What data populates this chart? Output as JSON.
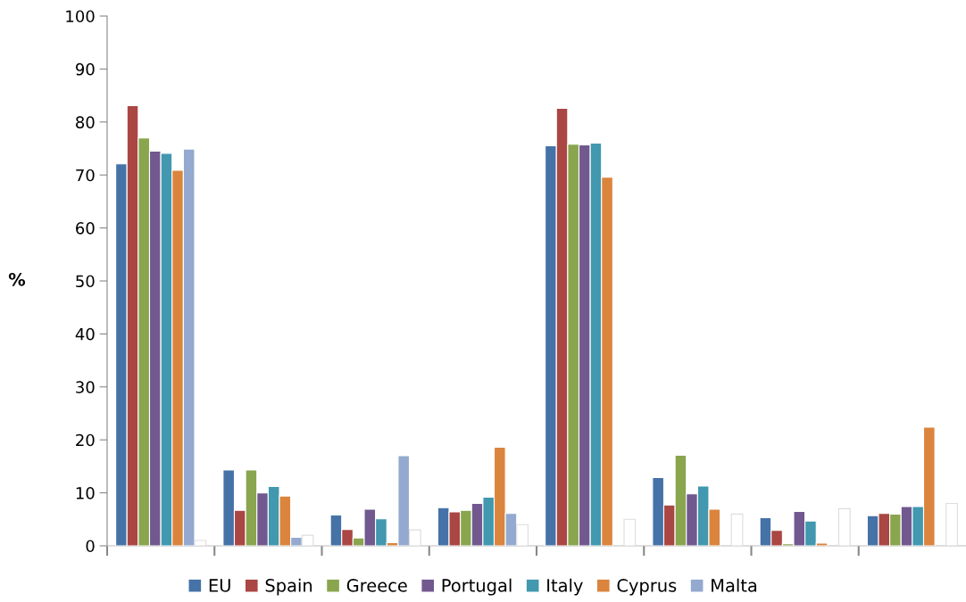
{
  "chart_data": {
    "type": "bar",
    "ylabel": "%",
    "categories": [
      null,
      null,
      null,
      null,
      null,
      null,
      null,
      null
    ],
    "series": [
      {
        "name": "EU",
        "color": "#4572a7",
        "values": [
          72.1,
          14.3,
          5.8,
          7.2,
          75.5,
          12.9,
          5.3,
          5.7
        ]
      },
      {
        "name": "Spain",
        "color": "#aa4643",
        "values": [
          83.1,
          6.7,
          3.1,
          6.4,
          82.6,
          7.7,
          2.9,
          6.1
        ]
      },
      {
        "name": "Greece",
        "color": "#89a54e",
        "values": [
          77.0,
          14.3,
          1.5,
          6.7,
          75.8,
          17.1,
          0.4,
          6.0
        ]
      },
      {
        "name": "Portugal",
        "color": "#71588f",
        "values": [
          74.5,
          10.0,
          6.9,
          8.0,
          75.7,
          9.8,
          6.5,
          7.4
        ]
      },
      {
        "name": "Italy",
        "color": "#4198af",
        "values": [
          74.1,
          11.2,
          5.1,
          9.2,
          76.0,
          11.3,
          4.7,
          7.4
        ]
      },
      {
        "name": "Cyprus",
        "color": "#db843d",
        "values": [
          70.9,
          9.4,
          0.6,
          18.6,
          69.6,
          6.9,
          0.5,
          22.4
        ]
      },
      {
        "name": "Malta",
        "color": "#93a9cf",
        "values": [
          74.9,
          1.6,
          17.0,
          6.1,
          null,
          null,
          null,
          null
        ]
      },
      {
        "color": "#ffffff",
        "values": [
          1,
          2,
          3,
          4,
          5,
          6,
          7,
          8
        ]
      }
    ],
    "ylim": [
      0,
      100
    ],
    "yticks": [
      0,
      10,
      20,
      30,
      40,
      50,
      60,
      70,
      80,
      90,
      100
    ],
    "grid": false,
    "legend": "bottom"
  }
}
